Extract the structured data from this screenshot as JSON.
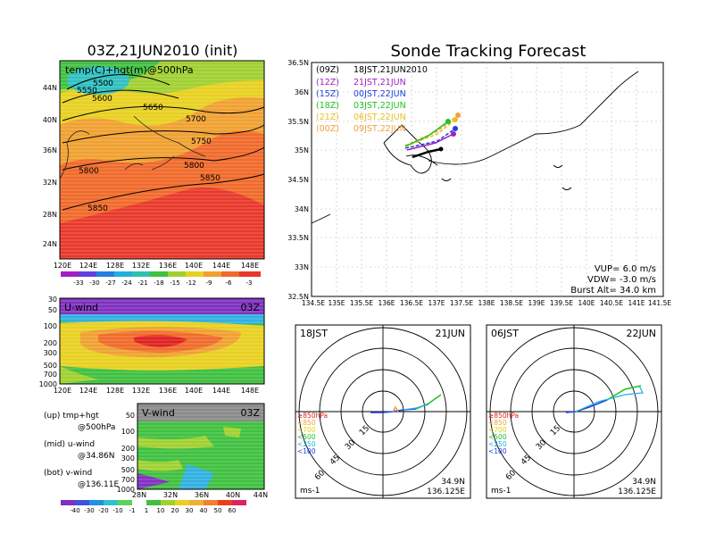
{
  "left_top": {
    "title": "03Z,21JUN2010 (init)",
    "label": "temp(C)+hgt(m)@500hPa",
    "xticks": [
      "120E",
      "124E",
      "128E",
      "132E",
      "136E",
      "140E",
      "144E",
      "148E"
    ],
    "yticks": [
      "24N",
      "28N",
      "32N",
      "36N",
      "40N",
      "44N"
    ],
    "contours": [
      "5500",
      "5550",
      "5600",
      "5650",
      "5700",
      "5750",
      "5800",
      "5800",
      "5850",
      "5850"
    ],
    "colorbar": [
      "-33",
      "-30",
      "-27",
      "-24",
      "-21",
      "-18",
      "-15",
      "-12",
      "-9",
      "-6",
      "-3"
    ]
  },
  "left_mid": {
    "label": "U-wind",
    "time": "03Z",
    "yticks": [
      "30",
      "50",
      "100",
      "200",
      "300",
      "500",
      "700",
      "1000"
    ],
    "xticks": [
      "120E",
      "124E",
      "128E",
      "132E",
      "136E",
      "140E",
      "144E",
      "148E"
    ]
  },
  "left_bot": {
    "label": "V-wind",
    "time": "03Z",
    "yticks": [
      "50",
      "100",
      "200",
      "300",
      "500",
      "700",
      "1000"
    ],
    "xticks": [
      "28N",
      "32N",
      "36N",
      "40N",
      "44N"
    ],
    "colorbar": [
      "-40",
      "-30",
      "-20",
      "-10",
      "-1",
      "1",
      "10",
      "20",
      "30",
      "40",
      "50",
      "60"
    ]
  },
  "notes": {
    "up1": "(up) tmp+hgt",
    "up2": "@500hPa",
    "mid1": "(mid) u-wind",
    "mid2": "@34.86N",
    "bot1": "(bot) v-wind",
    "bot2": "@136.11E"
  },
  "right_top": {
    "title": "Sonde Tracking Forecast",
    "legend": [
      {
        "utc": "(09Z)",
        "jst": "18JST,21JUN2010",
        "color": "#000000"
      },
      {
        "utc": "(12Z)",
        "jst": "21JST,21JUN",
        "color": "#a020c0"
      },
      {
        "utc": "(15Z)",
        "jst": "00JST,22JUN",
        "color": "#2040e0"
      },
      {
        "utc": "(18Z)",
        "jst": "03JST,22JUN",
        "color": "#20c020"
      },
      {
        "utc": "(21Z)",
        "jst": "06JST,22JUN",
        "color": "#e8c020"
      },
      {
        "utc": "(00Z)",
        "jst": "09JST,22JUN",
        "color": "#f0a040"
      }
    ],
    "yticks": [
      "36.5N",
      "36N",
      "35.5N",
      "35N",
      "34.5N",
      "34N",
      "33.5N",
      "33N",
      "32.5N"
    ],
    "xticks": [
      "134.5E",
      "135E",
      "135.5E",
      "136E",
      "136.5E",
      "137E",
      "137.5E",
      "138E",
      "138.5E",
      "139E",
      "139.5E",
      "140E",
      "140.5E",
      "141E",
      "141.5E"
    ],
    "vup": "VUP= 6.0 m/s",
    "vdw": "VDW= -3.0 m/s",
    "burst": "Burst Alt= 34.0 km"
  },
  "polar_left": {
    "time": "18JST",
    "date": "21JUN",
    "rings": [
      "15",
      "30",
      "45",
      "60"
    ],
    "unit": "ms-1",
    "lat": "34.9N",
    "lon": "136.125E",
    "levels": [
      {
        "label": "≥850hPa",
        "color": "#e02020"
      },
      {
        "label": "<850",
        "color": "#f0a030"
      },
      {
        "label": "<700",
        "color": "#e0d020"
      },
      {
        "label": "<500",
        "color": "#20c020"
      },
      {
        "label": "<250",
        "color": "#20b0e0"
      },
      {
        "label": "<100",
        "color": "#2040e0"
      }
    ]
  },
  "polar_right": {
    "time": "06JST",
    "date": "22JUN",
    "rings": [
      "15",
      "30",
      "45",
      "60"
    ],
    "unit": "ms-1",
    "lat": "34.9N",
    "lon": "136.125E",
    "levels": [
      {
        "label": "≥850hPa",
        "color": "#e02020"
      },
      {
        "label": "<850",
        "color": "#f0a030"
      },
      {
        "label": "<700",
        "color": "#e0d020"
      },
      {
        "label": "<500",
        "color": "#20c020"
      },
      {
        "label": "<250",
        "color": "#20b0e0"
      },
      {
        "label": "<100",
        "color": "#2040e0"
      }
    ]
  },
  "chart_data": [
    {
      "type": "heatmap",
      "title": "03Z,21JUN2010 (init)",
      "label": "temp(C)+hgt(m)@500hPa",
      "xlim": [
        120,
        150
      ],
      "ylim": [
        22,
        48
      ],
      "height_contours_m": [
        5500,
        5550,
        5600,
        5650,
        5700,
        5750,
        5800,
        5850
      ],
      "colorbar_levels": [
        -33,
        -30,
        -27,
        -24,
        -21,
        -18,
        -15,
        -12,
        -9,
        -6,
        -3
      ]
    },
    {
      "type": "heatmap",
      "label": "U-wind",
      "time": "03Z",
      "xlim": [
        120,
        150
      ],
      "pressure_levels_hPa": [
        30,
        50,
        100,
        200,
        300,
        500,
        700,
        1000
      ]
    },
    {
      "type": "heatmap",
      "label": "V-wind",
      "time": "03Z",
      "xlim": [
        28,
        44
      ],
      "pressure_levels_hPa": [
        50,
        100,
        200,
        300,
        500,
        700,
        1000
      ],
      "colorbar_levels": [
        -40,
        -30,
        -20,
        -10,
        -1,
        1,
        10,
        20,
        30,
        40,
        50,
        60
      ]
    },
    {
      "type": "line",
      "title": "Sonde Tracking Forecast",
      "xlim": [
        134.5,
        141.5
      ],
      "ylim": [
        32.5,
        36.5
      ],
      "series": [
        {
          "name": "(09Z) 18JST,21JUN2010",
          "x": [
            136.1,
            136.35,
            136.6
          ],
          "y": [
            34.93,
            35.02,
            35.13
          ]
        },
        {
          "name": "(12Z) 21JUN",
          "x": [
            136.0,
            136.5,
            137.0
          ],
          "y": [
            34.98,
            35.1,
            35.28
          ]
        },
        {
          "name": "(15Z) 22JUN",
          "x": [
            136.0,
            136.55,
            137.1
          ],
          "y": [
            35.02,
            35.15,
            35.38
          ]
        },
        {
          "name": "(18Z) 22JUN",
          "x": [
            136.0,
            136.5,
            136.95
          ],
          "y": [
            35.05,
            35.25,
            35.48
          ]
        },
        {
          "name": "(21Z) 22JUN",
          "x": [
            136.0,
            136.6,
            137.15
          ],
          "y": [
            35.06,
            35.28,
            35.5
          ]
        },
        {
          "name": "(00Z) 22JUN",
          "x": [
            136.0,
            136.6,
            137.2
          ],
          "y": [
            35.07,
            35.32,
            35.56
          ]
        }
      ]
    },
    {
      "type": "line",
      "title": "hodograph 18JST 21JUN",
      "rings_ms": [
        15,
        30,
        45,
        60
      ],
      "series": [
        {
          "name": "<100",
          "u": [
            0,
            4,
            10,
            18
          ],
          "v": [
            0,
            0,
            1,
            2
          ]
        },
        {
          "name": "<500",
          "u": [
            18,
            28,
            36
          ],
          "v": [
            2,
            6,
            14
          ]
        }
      ]
    },
    {
      "type": "line",
      "title": "hodograph 06JST 22JUN",
      "rings_ms": [
        15,
        30,
        45,
        60
      ],
      "series": [
        {
          "name": "<100",
          "u": [
            0,
            6,
            14,
            24
          ],
          "v": [
            0,
            0,
            2,
            6
          ]
        },
        {
          "name": "<500",
          "u": [
            24,
            40,
            48
          ],
          "v": [
            6,
            14,
            20
          ]
        }
      ]
    }
  ]
}
